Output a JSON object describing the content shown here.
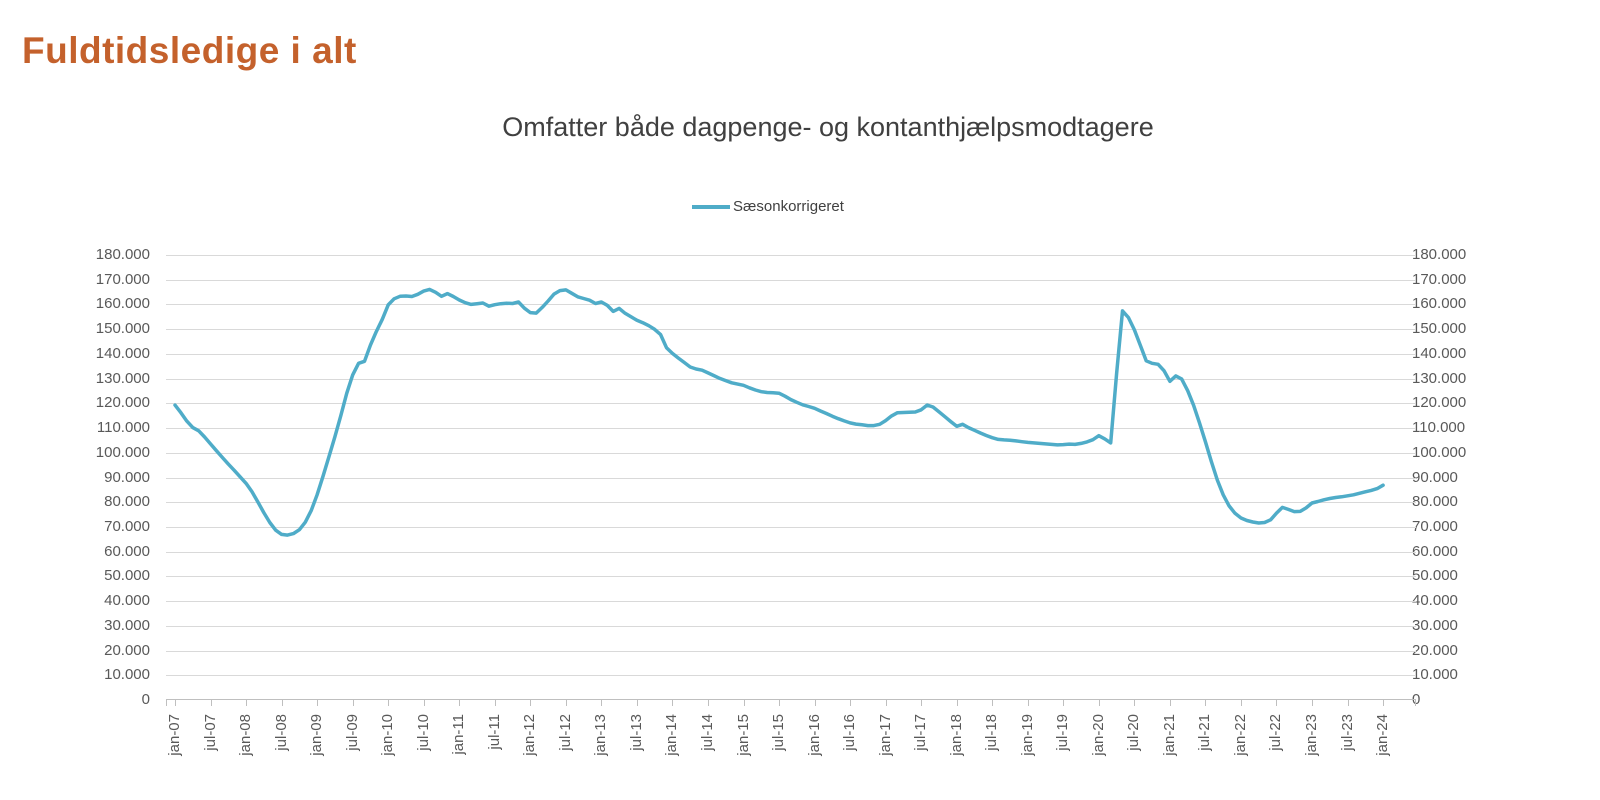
{
  "page_title": "Fuldtidsledige i alt",
  "colors": {
    "title": "#C4612C",
    "subtitle_text": "#404040",
    "axis_text": "#595959",
    "gridline": "#D9D9D9",
    "axis_line": "#BFBFBF",
    "series_line": "#4FACC8"
  },
  "chart_data": {
    "type": "line",
    "title": "Omfatter både dagpenge- og kontanthjælpsmodtagere",
    "legend": {
      "position": "top",
      "entries": [
        "Sæsonkorrigeret"
      ]
    },
    "grid": true,
    "dual_y_axis": true,
    "ylim": [
      0,
      180000
    ],
    "y_tick_step": 10000,
    "y_tick_labels": [
      "0",
      "10.000",
      "20.000",
      "30.000",
      "40.000",
      "50.000",
      "60.000",
      "70.000",
      "80.000",
      "90.000",
      "100.000",
      "110.000",
      "120.000",
      "130.000",
      "140.000",
      "150.000",
      "160.000",
      "170.000",
      "180.000"
    ],
    "x_start": "jan-07",
    "x_end": "jan-24",
    "x_interval": "monthly",
    "x_tick_labels": [
      "jan-07",
      "jul-07",
      "jan-08",
      "jul-08",
      "jan-09",
      "jul-09",
      "jan-10",
      "jul-10",
      "jan-11",
      "jul-11",
      "jan-12",
      "jul-12",
      "jan-13",
      "jul-13",
      "jan-14",
      "jul-14",
      "jan-15",
      "jul-15",
      "jan-16",
      "jul-16",
      "jan-17",
      "jul-17",
      "jan-18",
      "jul-18",
      "jan-19",
      "jul-19",
      "jan-20",
      "jul-20",
      "jan-21",
      "jul-21",
      "jan-22",
      "jul-22",
      "jan-23",
      "jul-23",
      "jan-24"
    ],
    "series": [
      {
        "name": "Sæsonkorrigeret",
        "color": "#4FACC8",
        "values": [
          119300,
          116200,
          112800,
          110200,
          108900,
          106400,
          103600,
          100800,
          98100,
          95400,
          92900,
          90300,
          87600,
          84200,
          80100,
          75800,
          71800,
          68700,
          67000,
          66700,
          67300,
          68900,
          71900,
          76600,
          83000,
          90500,
          98500,
          106500,
          115000,
          124000,
          131500,
          136200,
          137000,
          143500,
          149000,
          154000,
          159800,
          162300,
          163300,
          163400,
          163200,
          164100,
          165400,
          166100,
          164900,
          163300,
          164400,
          163200,
          161800,
          160700,
          160000,
          160300,
          160600,
          159300,
          159900,
          160300,
          160500,
          160400,
          161000,
          158500,
          156700,
          156500,
          158800,
          161400,
          164200,
          165600,
          165900,
          164500,
          163100,
          162400,
          161700,
          160400,
          161000,
          159600,
          157200,
          158400,
          156400,
          155000,
          153600,
          152600,
          151400,
          149900,
          147800,
          142500,
          140200,
          138300,
          136500,
          134700,
          133900,
          133400,
          132300,
          131200,
          130100,
          129200,
          128300,
          127800,
          127300,
          126300,
          125400,
          124700,
          124400,
          124300,
          124100,
          122900,
          121500,
          120400,
          119400,
          118700,
          118000,
          116900,
          115900,
          114800,
          113800,
          112900,
          112100,
          111600,
          111300,
          111000,
          111000,
          111500,
          113000,
          114900,
          116200,
          116300,
          116400,
          116500,
          117400,
          119300,
          118500,
          116600,
          114600,
          112600,
          110700,
          111500,
          110200,
          109100,
          108000,
          107000,
          106100,
          105400,
          105200,
          105100,
          104800,
          104500,
          104200,
          104000,
          103800,
          103600,
          103400,
          103200,
          103300,
          103500,
          103400,
          103800,
          104400,
          105300,
          106900,
          105600,
          104000,
          132000,
          157400,
          154700,
          149700,
          143500,
          137200,
          136200,
          135800,
          133200,
          128900,
          131100,
          129800,
          125100,
          119200,
          112100,
          104500,
          96500,
          89000,
          83000,
          78500,
          75500,
          73600,
          72600,
          72000,
          71600,
          71800,
          72900,
          75600,
          77900,
          77100,
          76200,
          76300,
          77700,
          79700,
          80300,
          81000,
          81500,
          81900,
          82200,
          82600,
          83000,
          83600,
          84200,
          84800,
          85500,
          86900
        ]
      }
    ]
  }
}
